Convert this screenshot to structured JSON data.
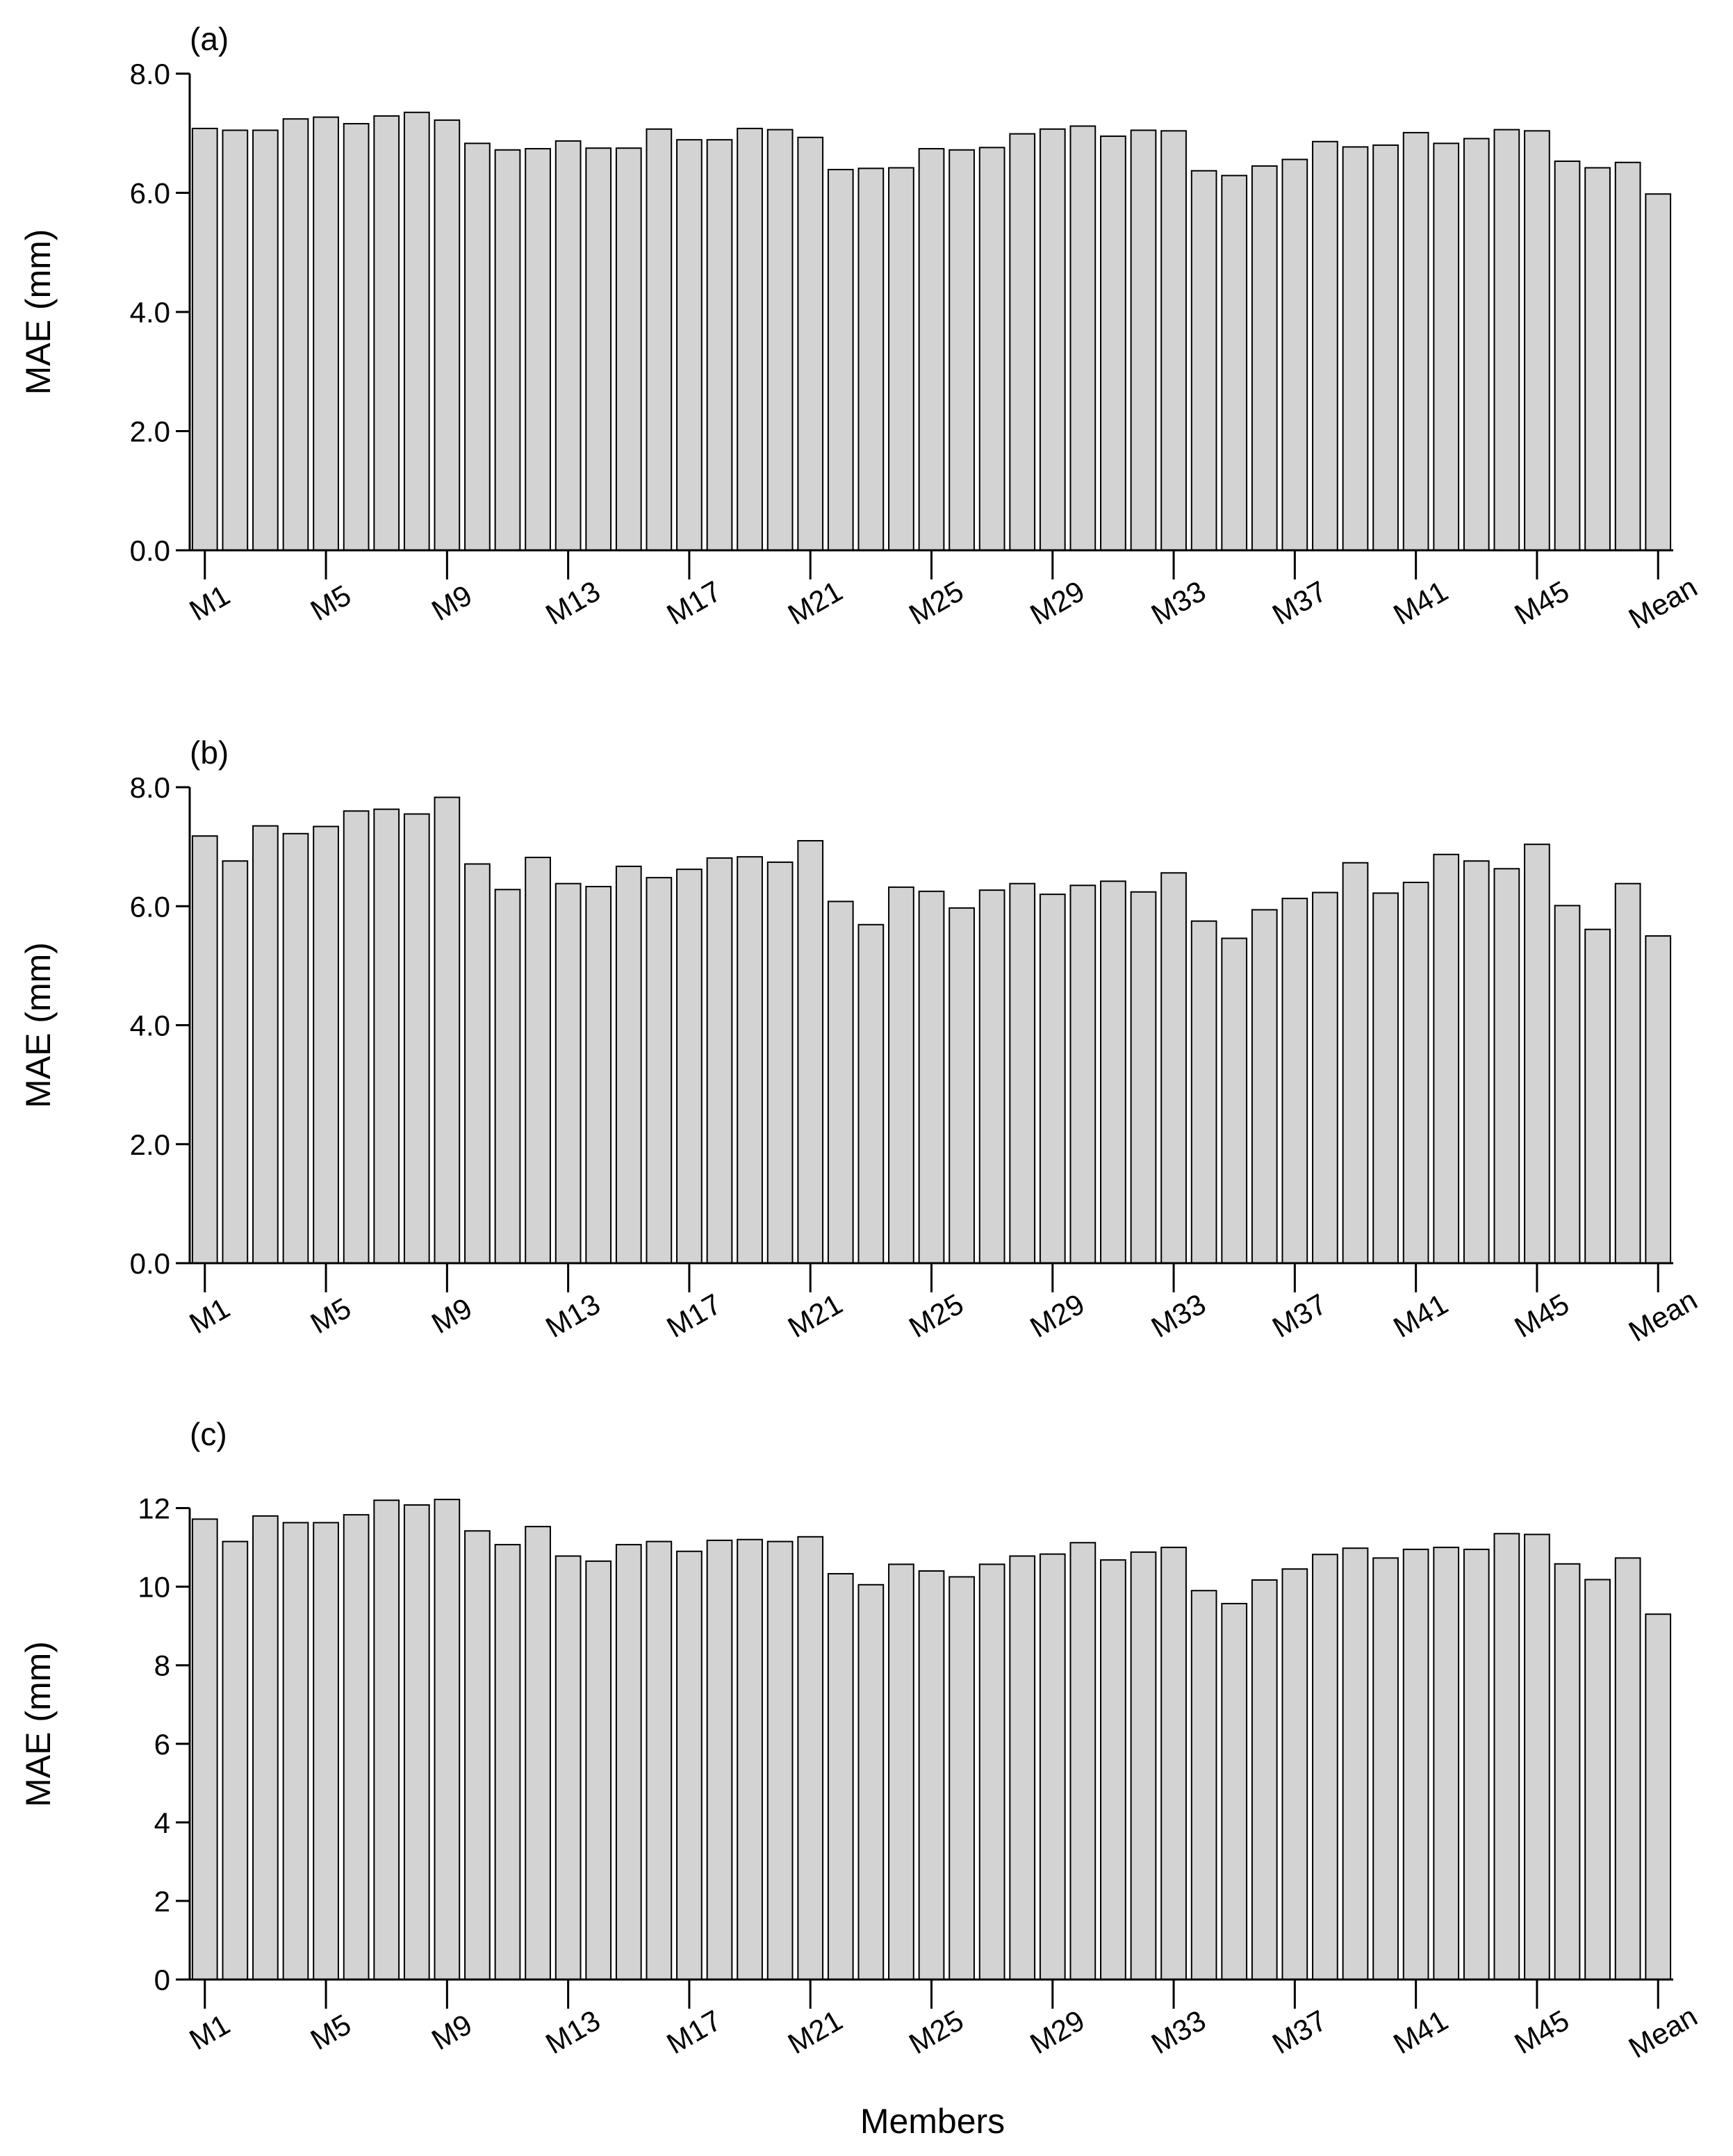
{
  "figure": {
    "xlabel": "Members"
  },
  "style": {
    "bar_fill": "#d3d3d3",
    "bar_stroke": "#000000",
    "axis_color": "#000000"
  },
  "chart_data": [
    {
      "type": "bar",
      "panel_label": "(a)",
      "ylabel": "MAE (mm)",
      "ylim": [
        0,
        8
      ],
      "yticks": [
        0,
        2,
        4,
        6,
        8
      ],
      "ytick_labels": [
        "0.0",
        "2.0",
        "4.0",
        "6.0",
        "8.0"
      ],
      "xtick_positions": [
        0,
        4,
        8,
        12,
        16,
        20,
        24,
        28,
        32,
        36,
        40,
        44,
        48
      ],
      "xtick_labels": [
        "M1",
        "M5",
        "M9",
        "M13",
        "M17",
        "M21",
        "M25",
        "M29",
        "M33",
        "M37",
        "M41",
        "M45",
        "Mean"
      ],
      "categories": [
        "M1",
        "M2",
        "M3",
        "M4",
        "M5",
        "M6",
        "M7",
        "M8",
        "M9",
        "M10",
        "M11",
        "M12",
        "M13",
        "M14",
        "M15",
        "M16",
        "M17",
        "M18",
        "M19",
        "M20",
        "M21",
        "M22",
        "M23",
        "M24",
        "M25",
        "M26",
        "M27",
        "M28",
        "M29",
        "M30",
        "M31",
        "M32",
        "M33",
        "M34",
        "M35",
        "M36",
        "M37",
        "M38",
        "M39",
        "M40",
        "M41",
        "M42",
        "M43",
        "M44",
        "M45",
        "M46",
        "M47",
        "M48",
        "Mean"
      ],
      "values": [
        7.08,
        7.05,
        7.05,
        7.24,
        7.27,
        7.16,
        7.29,
        7.35,
        7.22,
        6.83,
        6.72,
        6.74,
        6.87,
        6.75,
        6.75,
        7.07,
        6.89,
        6.89,
        7.08,
        7.06,
        6.93,
        6.39,
        6.41,
        6.42,
        6.74,
        6.72,
        6.76,
        6.99,
        7.07,
        7.12,
        6.95,
        7.05,
        7.04,
        6.37,
        6.29,
        6.45,
        6.56,
        6.86,
        6.77,
        6.8,
        7.01,
        6.83,
        6.91,
        7.06,
        7.04,
        6.53,
        6.42,
        6.51,
        5.98
      ]
    },
    {
      "type": "bar",
      "panel_label": "(b)",
      "ylabel": "MAE (mm)",
      "ylim": [
        0,
        8
      ],
      "yticks": [
        0,
        2,
        4,
        6,
        8
      ],
      "ytick_labels": [
        "0.0",
        "2.0",
        "4.0",
        "6.0",
        "8.0"
      ],
      "xtick_positions": [
        0,
        4,
        8,
        12,
        16,
        20,
        24,
        28,
        32,
        36,
        40,
        44,
        48
      ],
      "xtick_labels": [
        "M1",
        "M5",
        "M9",
        "M13",
        "M17",
        "M21",
        "M25",
        "M29",
        "M33",
        "M37",
        "M41",
        "M45",
        "Mean"
      ],
      "categories": [
        "M1",
        "M2",
        "M3",
        "M4",
        "M5",
        "M6",
        "M7",
        "M8",
        "M9",
        "M10",
        "M11",
        "M12",
        "M13",
        "M14",
        "M15",
        "M16",
        "M17",
        "M18",
        "M19",
        "M20",
        "M21",
        "M22",
        "M23",
        "M24",
        "M25",
        "M26",
        "M27",
        "M28",
        "M29",
        "M30",
        "M31",
        "M32",
        "M33",
        "M34",
        "M35",
        "M36",
        "M37",
        "M38",
        "M39",
        "M40",
        "M41",
        "M42",
        "M43",
        "M44",
        "M45",
        "M46",
        "M47",
        "M48",
        "Mean"
      ],
      "values": [
        7.18,
        6.76,
        7.35,
        7.22,
        7.34,
        7.6,
        7.63,
        7.55,
        7.83,
        6.71,
        6.28,
        6.82,
        6.38,
        6.33,
        6.67,
        6.48,
        6.62,
        6.81,
        6.83,
        6.74,
        7.1,
        6.08,
        5.69,
        6.32,
        6.25,
        5.97,
        6.27,
        6.38,
        6.2,
        6.35,
        6.42,
        6.24,
        6.56,
        5.75,
        5.46,
        5.94,
        6.13,
        6.23,
        6.73,
        6.22,
        6.4,
        6.87,
        6.76,
        6.63,
        7.04,
        6.01,
        5.61,
        6.38,
        5.5
      ]
    },
    {
      "type": "bar",
      "panel_label": "(c)",
      "ylabel": "MAE (mm)",
      "ylim": [
        0,
        13
      ],
      "yticks": [
        0,
        2,
        4,
        6,
        8,
        10,
        12
      ],
      "ytick_labels": [
        "0",
        "2",
        "4",
        "6",
        "8",
        "10",
        "12"
      ],
      "xtick_positions": [
        0,
        4,
        8,
        12,
        16,
        20,
        24,
        28,
        32,
        36,
        40,
        44,
        48
      ],
      "xtick_labels": [
        "M1",
        "M5",
        "M9",
        "M13",
        "M17",
        "M21",
        "M25",
        "M29",
        "M33",
        "M37",
        "M41",
        "M45",
        "Mean"
      ],
      "categories": [
        "M1",
        "M2",
        "M3",
        "M4",
        "M5",
        "M6",
        "M7",
        "M8",
        "M9",
        "M10",
        "M11",
        "M12",
        "M13",
        "M14",
        "M15",
        "M16",
        "M17",
        "M18",
        "M19",
        "M20",
        "M21",
        "M22",
        "M23",
        "M24",
        "M25",
        "M26",
        "M27",
        "M28",
        "M29",
        "M30",
        "M31",
        "M32",
        "M33",
        "M34",
        "M35",
        "M36",
        "M37",
        "M38",
        "M39",
        "M40",
        "M41",
        "M42",
        "M43",
        "M44",
        "M45",
        "M46",
        "M47",
        "M48",
        "Mean"
      ],
      "values": [
        11.72,
        11.15,
        11.8,
        11.63,
        11.63,
        11.83,
        12.2,
        12.08,
        12.22,
        11.42,
        11.07,
        11.53,
        10.78,
        10.65,
        11.07,
        11.15,
        10.9,
        11.18,
        11.2,
        11.15,
        11.27,
        10.33,
        10.05,
        10.57,
        10.4,
        10.25,
        10.57,
        10.78,
        10.83,
        11.12,
        10.68,
        10.88,
        11.0,
        9.9,
        9.57,
        10.17,
        10.45,
        10.82,
        10.98,
        10.73,
        10.95,
        11.0,
        10.95,
        11.35,
        11.33,
        10.58,
        10.18,
        10.73,
        9.3
      ]
    }
  ]
}
